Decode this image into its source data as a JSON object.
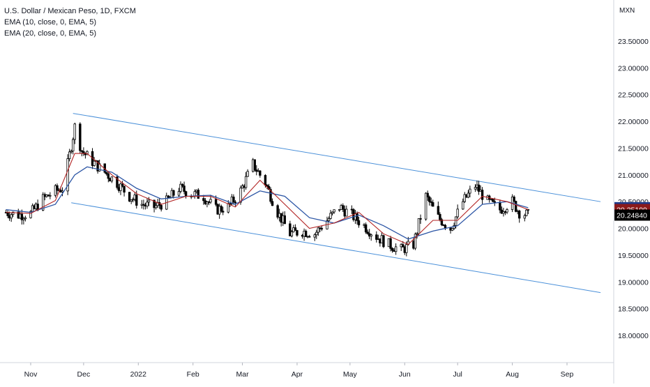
{
  "chart_data": {
    "type": "candlestick",
    "title": "U.S. Dollar / Mexican Peso, 1D, FXCM",
    "indicators": [
      "EMA (10, close, 0, EMA, 5)",
      "EMA (20, close, 0, EMA, 5)"
    ],
    "currency_label": "MXN",
    "y_ticks": [
      "23.50000",
      "23.00000",
      "22.50000",
      "22.00000",
      "21.50000",
      "21.00000",
      "20.50000",
      "20.00000",
      "19.50000",
      "19.00000",
      "18.50000",
      "18.00000"
    ],
    "y_tick_values": [
      23.5,
      23.0,
      22.5,
      22.0,
      21.5,
      21.0,
      20.5,
      20.0,
      19.5,
      19.0,
      18.5,
      18.0
    ],
    "x_ticks": [
      "Nov",
      "Dec",
      "2022",
      "Feb",
      "Mar",
      "Apr",
      "May",
      "Jun",
      "Jul",
      "Aug",
      "Sep"
    ],
    "x_tick_dates": [
      "2021-11-01",
      "2021-12-01",
      "2022-01-01",
      "2022-02-01",
      "2022-03-01",
      "2022-04-01",
      "2022-05-01",
      "2022-06-01",
      "2022-07-01",
      "2022-08-01",
      "2022-09-01"
    ],
    "ylim": [
      17.4,
      24.2
    ],
    "grid": false,
    "price_labels": [
      {
        "text": "20.38737",
        "value": 20.38737,
        "color": "#1e3a8a",
        "series": "EMA (20, close, 0, EMA, 5)"
      },
      {
        "text": "20.35199",
        "value": 20.35199,
        "color": "#8b1a1a",
        "series": "EMA (10, close, 0, EMA, 5)"
      },
      {
        "text": "20.24840",
        "value": 20.2484,
        "color": "#000000",
        "series": "price"
      }
    ],
    "colors": {
      "ema10": "#b22222",
      "ema20": "#2b55a5",
      "candle": "#000000",
      "channel": "#4a90d9",
      "background": "#ffffff"
    },
    "channel": {
      "upper": [
        {
          "date": "2021-11-25",
          "value": 22.15
        },
        {
          "date": "2022-09-20",
          "value": 20.5
        }
      ],
      "lower": [
        {
          "date": "2021-11-24",
          "value": 20.48
        },
        {
          "date": "2022-09-20",
          "value": 18.8
        }
      ]
    },
    "close_series": [
      {
        "date": "2021-10-18",
        "value": 20.3
      },
      {
        "date": "2021-10-25",
        "value": 20.25
      },
      {
        "date": "2021-11-01",
        "value": 20.28
      },
      {
        "date": "2021-11-08",
        "value": 20.55
      },
      {
        "date": "2021-11-15",
        "value": 20.7
      },
      {
        "date": "2021-11-19",
        "value": 20.75
      },
      {
        "date": "2021-11-22",
        "value": 21.2
      },
      {
        "date": "2021-11-26",
        "value": 21.9
      },
      {
        "date": "2021-11-30",
        "value": 21.45
      },
      {
        "date": "2021-12-06",
        "value": 21.25
      },
      {
        "date": "2021-12-13",
        "value": 21.05
      },
      {
        "date": "2021-12-20",
        "value": 20.85
      },
      {
        "date": "2021-12-27",
        "value": 20.6
      },
      {
        "date": "2022-01-03",
        "value": 20.45
      },
      {
        "date": "2022-01-10",
        "value": 20.4
      },
      {
        "date": "2022-01-17",
        "value": 20.5
      },
      {
        "date": "2022-01-24",
        "value": 20.75
      },
      {
        "date": "2022-01-31",
        "value": 20.65
      },
      {
        "date": "2022-02-07",
        "value": 20.6
      },
      {
        "date": "2022-02-14",
        "value": 20.35
      },
      {
        "date": "2022-02-21",
        "value": 20.4
      },
      {
        "date": "2022-02-28",
        "value": 20.7
      },
      {
        "date": "2022-03-07",
        "value": 21.2
      },
      {
        "date": "2022-03-14",
        "value": 20.85
      },
      {
        "date": "2022-03-21",
        "value": 20.3
      },
      {
        "date": "2022-03-28",
        "value": 19.9
      },
      {
        "date": "2022-04-04",
        "value": 19.95
      },
      {
        "date": "2022-04-11",
        "value": 19.9
      },
      {
        "date": "2022-04-18",
        "value": 20.15
      },
      {
        "date": "2022-04-25",
        "value": 20.4
      },
      {
        "date": "2022-05-02",
        "value": 20.25
      },
      {
        "date": "2022-05-09",
        "value": 20.05
      },
      {
        "date": "2022-05-16",
        "value": 19.85
      },
      {
        "date": "2022-05-23",
        "value": 19.7
      },
      {
        "date": "2022-05-30",
        "value": 19.6
      },
      {
        "date": "2022-06-06",
        "value": 19.7
      },
      {
        "date": "2022-06-13",
        "value": 20.6
      },
      {
        "date": "2022-06-20",
        "value": 20.2
      },
      {
        "date": "2022-06-27",
        "value": 20.0
      },
      {
        "date": "2022-07-04",
        "value": 20.5
      },
      {
        "date": "2022-07-11",
        "value": 20.8
      },
      {
        "date": "2022-07-18",
        "value": 20.5
      },
      {
        "date": "2022-07-25",
        "value": 20.35
      },
      {
        "date": "2022-08-01",
        "value": 20.5
      },
      {
        "date": "2022-08-05",
        "value": 20.3
      },
      {
        "date": "2022-08-10",
        "value": 20.25
      }
    ],
    "ema10_series": [
      {
        "date": "2021-10-18",
        "value": 20.3
      },
      {
        "date": "2021-11-01",
        "value": 20.28
      },
      {
        "date": "2021-11-15",
        "value": 20.52
      },
      {
        "date": "2021-11-26",
        "value": 21.4
      },
      {
        "date": "2021-12-03",
        "value": 21.4
      },
      {
        "date": "2021-12-17",
        "value": 21.0
      },
      {
        "date": "2021-12-31",
        "value": 20.65
      },
      {
        "date": "2022-01-14",
        "value": 20.45
      },
      {
        "date": "2022-01-28",
        "value": 20.6
      },
      {
        "date": "2022-02-11",
        "value": 20.6
      },
      {
        "date": "2022-02-25",
        "value": 20.4
      },
      {
        "date": "2022-03-11",
        "value": 20.9
      },
      {
        "date": "2022-03-25",
        "value": 20.45
      },
      {
        "date": "2022-04-08",
        "value": 20.0
      },
      {
        "date": "2022-04-22",
        "value": 20.1
      },
      {
        "date": "2022-05-06",
        "value": 20.3
      },
      {
        "date": "2022-05-20",
        "value": 19.9
      },
      {
        "date": "2022-06-03",
        "value": 19.7
      },
      {
        "date": "2022-06-17",
        "value": 20.15
      },
      {
        "date": "2022-07-01",
        "value": 20.15
      },
      {
        "date": "2022-07-15",
        "value": 20.6
      },
      {
        "date": "2022-07-29",
        "value": 20.5
      },
      {
        "date": "2022-08-10",
        "value": 20.352
      }
    ],
    "ema20_series": [
      {
        "date": "2021-10-18",
        "value": 20.35
      },
      {
        "date": "2021-11-01",
        "value": 20.3
      },
      {
        "date": "2021-11-15",
        "value": 20.45
      },
      {
        "date": "2021-11-26",
        "value": 21.0
      },
      {
        "date": "2021-12-03",
        "value": 21.15
      },
      {
        "date": "2021-12-17",
        "value": 21.05
      },
      {
        "date": "2021-12-31",
        "value": 20.75
      },
      {
        "date": "2022-01-14",
        "value": 20.55
      },
      {
        "date": "2022-01-28",
        "value": 20.6
      },
      {
        "date": "2022-02-11",
        "value": 20.62
      },
      {
        "date": "2022-02-25",
        "value": 20.45
      },
      {
        "date": "2022-03-11",
        "value": 20.7
      },
      {
        "date": "2022-03-25",
        "value": 20.6
      },
      {
        "date": "2022-04-08",
        "value": 20.2
      },
      {
        "date": "2022-04-22",
        "value": 20.1
      },
      {
        "date": "2022-05-06",
        "value": 20.25
      },
      {
        "date": "2022-05-20",
        "value": 20.05
      },
      {
        "date": "2022-06-03",
        "value": 19.8
      },
      {
        "date": "2022-06-17",
        "value": 19.95
      },
      {
        "date": "2022-07-01",
        "value": 20.05
      },
      {
        "date": "2022-07-15",
        "value": 20.45
      },
      {
        "date": "2022-07-29",
        "value": 20.5
      },
      {
        "date": "2022-08-10",
        "value": 20.387
      }
    ]
  }
}
